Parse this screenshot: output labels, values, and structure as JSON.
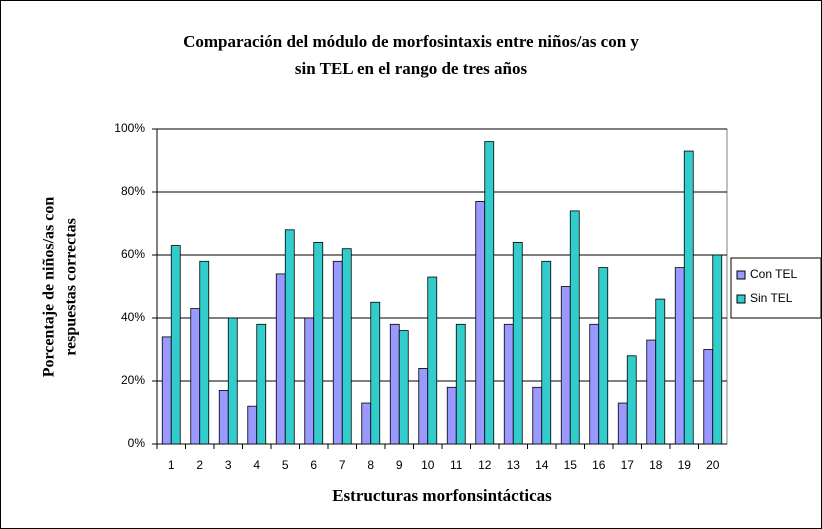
{
  "chart_data": {
    "type": "bar",
    "title": [
      "Comparación del módulo de morfosintaxis entre niños/as con y",
      "sin TEL en el rango de tres años"
    ],
    "x_label": "Estructuras morfonsintácticas",
    "y_label": [
      "Porcentaje de niños/as con",
      "respuestas correctas"
    ],
    "categories": [
      "1",
      "2",
      "3",
      "4",
      "5",
      "6",
      "7",
      "8",
      "9",
      "10",
      "11",
      "12",
      "13",
      "14",
      "15",
      "16",
      "17",
      "18",
      "19",
      "20"
    ],
    "series": [
      {
        "name": "Con TEL",
        "color": "#9999ff",
        "values": [
          34,
          43,
          17,
          12,
          54,
          40,
          58,
          13,
          38,
          24,
          18,
          77,
          38,
          18,
          50,
          38,
          13,
          33,
          56,
          30
        ]
      },
      {
        "name": "Sin TEL",
        "color": "#33cccc",
        "values": [
          63,
          58,
          40,
          38,
          68,
          64,
          62,
          45,
          36,
          53,
          38,
          96,
          64,
          58,
          74,
          56,
          28,
          46,
          93,
          60
        ]
      }
    ],
    "ylim": [
      0,
      100
    ],
    "yticks": [
      {
        "value": 0,
        "label": "0%"
      },
      {
        "value": 20,
        "label": "20%"
      },
      {
        "value": 40,
        "label": "40%"
      },
      {
        "value": 60,
        "label": "60%"
      },
      {
        "value": 80,
        "label": "80%"
      },
      {
        "value": 100,
        "label": "100%"
      }
    ],
    "grid": true,
    "legend": "right"
  }
}
